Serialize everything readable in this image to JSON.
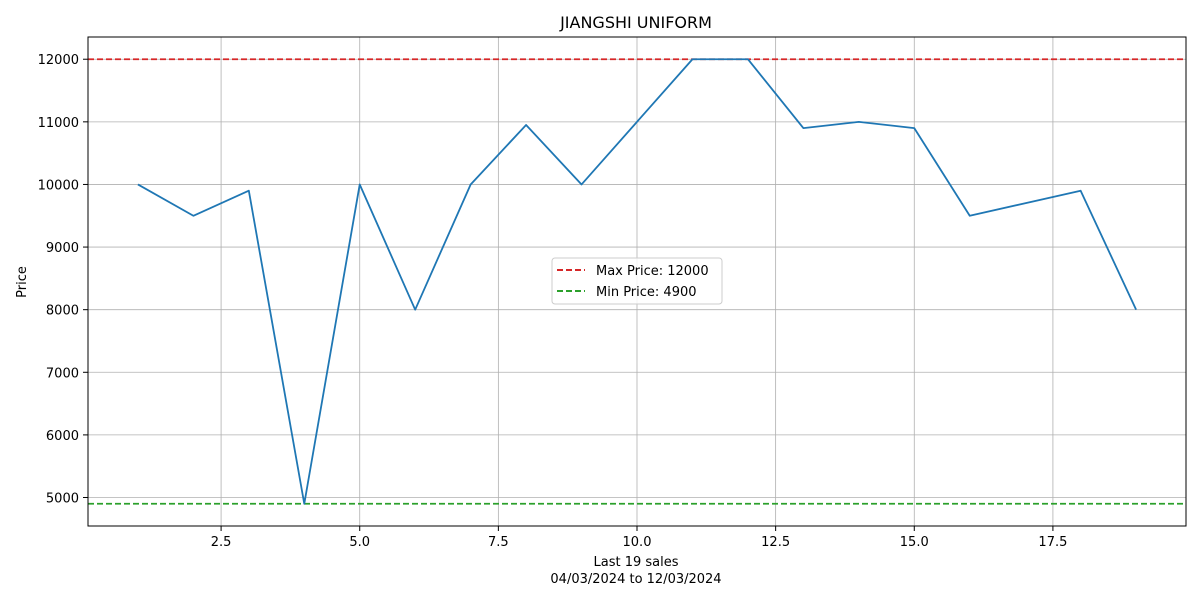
{
  "chart_data": {
    "type": "line",
    "title": "JIANGSHI UNIFORM",
    "xlabel": "Last 19 sales",
    "xlabel_sub": "04/03/2024 to 12/03/2024",
    "ylabel": "Price",
    "x": [
      1,
      2,
      3,
      4,
      5,
      6,
      7,
      8,
      9,
      10,
      11,
      12,
      13,
      14,
      15,
      16,
      17,
      18,
      19
    ],
    "series": [
      {
        "values": [
          10000,
          9500,
          9900,
          4900,
          10000,
          8000,
          10000,
          10950,
          10000,
          11000,
          12000,
          12000,
          10900,
          11000,
          10900,
          9500,
          9700,
          9900,
          8000
        ],
        "color": "#1f77b4"
      }
    ],
    "reference_lines": [
      {
        "label": "Max Price: 12000",
        "value": 12000,
        "color": "#d62728",
        "style": "dashed"
      },
      {
        "label": "Min Price: 4900",
        "value": 4900,
        "color": "#2ca02c",
        "style": "dashed"
      }
    ],
    "xlim": [
      0.1,
      19.9
    ],
    "ylim": [
      4545,
      12355
    ],
    "xticks": [
      2.5,
      5.0,
      7.5,
      10.0,
      12.5,
      15.0,
      17.5
    ],
    "xtick_labels": [
      "2.5",
      "5.0",
      "7.5",
      "10.0",
      "12.5",
      "15.0",
      "17.5"
    ],
    "yticks": [
      5000,
      6000,
      7000,
      8000,
      9000,
      10000,
      11000,
      12000
    ],
    "ytick_labels": [
      "5000",
      "6000",
      "7000",
      "8000",
      "9000",
      "10000",
      "11000",
      "12000"
    ],
    "grid": true,
    "legend_position": "center"
  }
}
